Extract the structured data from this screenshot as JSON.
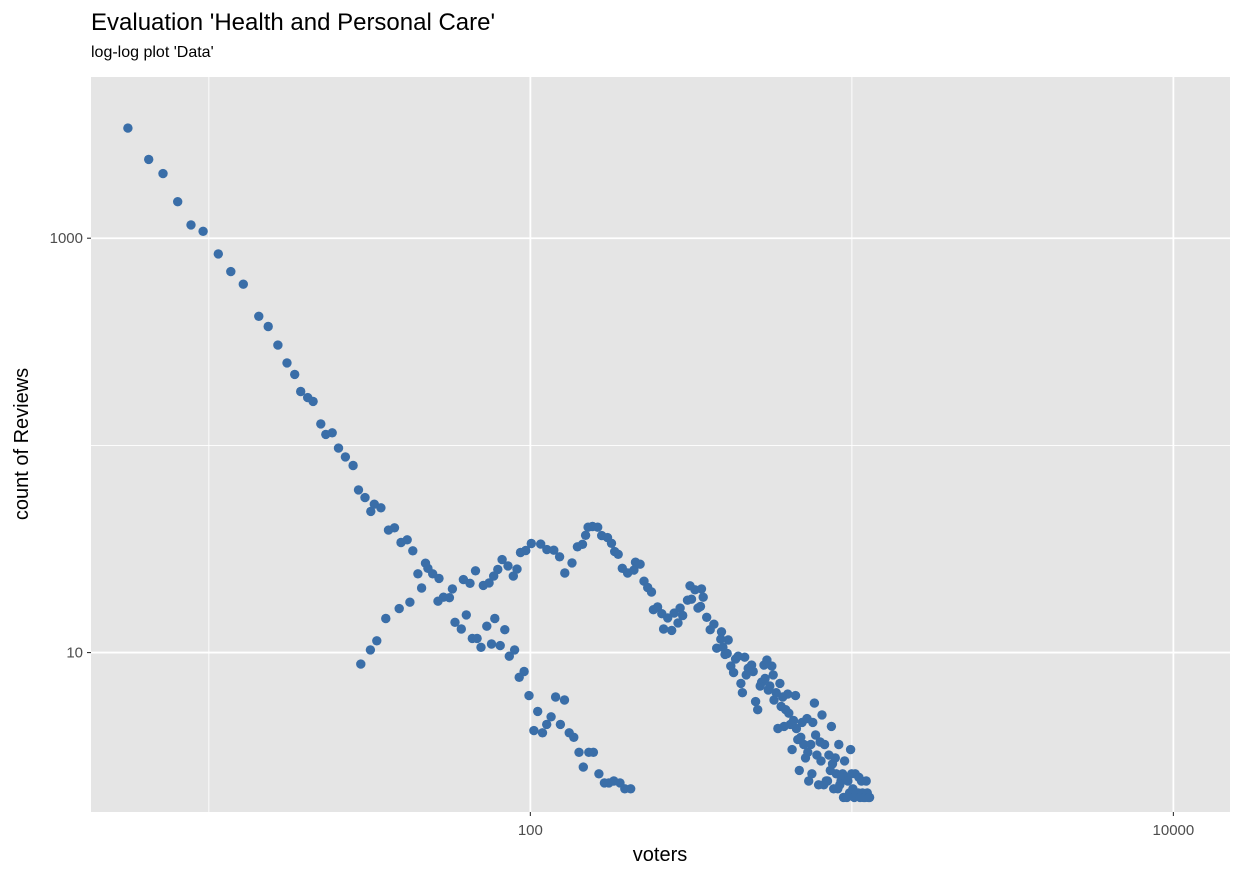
{
  "chart_data": {
    "type": "scatter",
    "title": "Evaluation 'Health and Personal Care'",
    "subtitle": "log-log plot 'Data'",
    "xlabel": "voters",
    "ylabel": "count of Reviews",
    "x_scale": "log10",
    "y_scale": "log10",
    "xlim": [
      4.3,
      15000
    ],
    "ylim": [
      1.7,
      6000
    ],
    "x_ticks": [
      {
        "value": 100,
        "label": "100"
      },
      {
        "value": 10000,
        "label": "10000"
      }
    ],
    "y_ticks": [
      {
        "value": 10,
        "label": "10"
      },
      {
        "value": 1000,
        "label": "1000"
      }
    ],
    "x_minor_gridlines": [
      10,
      1000
    ],
    "y_minor_gridlines": [
      1,
      100
    ],
    "grid": true,
    "point_color": "#3a6ea8",
    "panel_background": "#e5e5e5",
    "gridline_color": "#ffffff",
    "points": [
      [
        5.6,
        3400
      ],
      [
        6.5,
        2400
      ],
      [
        7.2,
        2050
      ],
      [
        8,
        1500
      ],
      [
        8.8,
        1160
      ],
      [
        9.6,
        1080
      ],
      [
        10.7,
        840
      ],
      [
        11.7,
        690
      ],
      [
        12.8,
        600
      ],
      [
        14.3,
        420
      ],
      [
        15.3,
        375
      ],
      [
        16.4,
        305
      ],
      [
        17.5,
        250
      ],
      [
        18.5,
        220
      ],
      [
        19.3,
        182
      ],
      [
        20.3,
        170
      ],
      [
        21.1,
        163
      ],
      [
        22.3,
        127
      ],
      [
        23.1,
        113
      ],
      [
        24.2,
        115
      ],
      [
        25.3,
        97
      ],
      [
        26.6,
        88
      ],
      [
        28.1,
        80
      ],
      [
        29.2,
        61
      ],
      [
        30.6,
        56
      ],
      [
        31.9,
        48
      ],
      [
        32.7,
        52
      ],
      [
        34.3,
        50
      ],
      [
        36.2,
        39
      ],
      [
        37.8,
        40
      ],
      [
        39.6,
        34
      ],
      [
        41.4,
        35
      ],
      [
        43.1,
        31
      ],
      [
        44.7,
        24
      ],
      [
        47.2,
        27
      ],
      [
        49.7,
        24
      ],
      [
        51.6,
        17.7
      ],
      [
        53.7,
        18.5
      ],
      [
        56,
        18.4
      ],
      [
        58.3,
        14
      ],
      [
        61,
        13
      ],
      [
        63.2,
        15.2
      ],
      [
        66,
        11.7
      ],
      [
        68.3,
        11.7
      ],
      [
        70.2,
        10.6
      ],
      [
        73.2,
        13.4
      ],
      [
        75.7,
        11
      ],
      [
        77.5,
        14.6
      ],
      [
        80.6,
        10.8
      ],
      [
        83.3,
        12.9
      ],
      [
        86,
        9.6
      ],
      [
        89.3,
        10.3
      ],
      [
        92.3,
        7.6
      ],
      [
        95.6,
        8.1
      ],
      [
        99,
        6.2
      ],
      [
        102.6,
        4.2
      ],
      [
        105.4,
        5.2
      ],
      [
        109.1,
        4.1
      ],
      [
        112.4,
        4.5
      ],
      [
        116,
        4.9
      ],
      [
        119.8,
        6.1
      ],
      [
        124,
        4.5
      ],
      [
        127.7,
        5.9
      ],
      [
        132.1,
        4.1
      ],
      [
        136.5,
        3.9
      ],
      [
        141.7,
        3.3
      ],
      [
        146.1,
        2.8
      ],
      [
        152,
        3.3
      ],
      [
        157.1,
        3.3
      ],
      [
        163.4,
        2.6
      ],
      [
        169.9,
        2.35
      ],
      [
        175.5,
        2.35
      ],
      [
        181.8,
        2.4
      ],
      [
        190,
        2.35
      ],
      [
        196.7,
        2.2
      ],
      [
        205.2,
        2.2
      ],
      [
        29.7,
        8.8
      ],
      [
        31.8,
        10.3
      ],
      [
        33.3,
        11.4
      ],
      [
        35.5,
        14.6
      ],
      [
        39.1,
        16.3
      ],
      [
        42.2,
        17.5
      ],
      [
        45.9,
        20.5
      ],
      [
        48,
        25.5
      ],
      [
        52,
        22.8
      ],
      [
        57.2,
        20.3
      ],
      [
        61.9,
        22.5
      ],
      [
        64.9,
        21.6
      ],
      [
        67.5,
        24.8
      ],
      [
        71.4,
        21.1
      ],
      [
        74.4,
        21.7
      ],
      [
        76.9,
        23.4
      ],
      [
        79.2,
        25.2
      ],
      [
        81.7,
        28.1
      ],
      [
        85.2,
        26.2
      ],
      [
        88.5,
        23.4
      ],
      [
        90.9,
        25.3
      ],
      [
        93.2,
        30.4
      ],
      [
        96.8,
        31.1
      ],
      [
        100.7,
        33.6
      ],
      [
        107.7,
        33.4
      ],
      [
        112.6,
        31.4
      ],
      [
        118.3,
        31.2
      ],
      [
        123.3,
        29
      ],
      [
        128,
        24.2
      ],
      [
        134.7,
        27.1
      ],
      [
        140.1,
        32.4
      ],
      [
        145.3,
        33.3
      ],
      [
        148.5,
        36.8
      ],
      [
        151.2,
        40.3
      ],
      [
        156,
        40.6
      ],
      [
        162,
        40.3
      ],
      [
        166.7,
        36.7
      ],
      [
        173.8,
        35.9
      ],
      [
        178.8,
        33.7
      ],
      [
        183,
        30.7
      ],
      [
        187.6,
        29.8
      ],
      [
        193.2,
        25.5
      ],
      [
        200.7,
        24.2
      ],
      [
        209.9,
        25
      ],
      [
        212.4,
        27.3
      ],
      [
        219.5,
        26.7
      ],
      [
        225.6,
        22.1
      ],
      [
        231.8,
        20.6
      ],
      [
        238.1,
        19.6
      ],
      [
        241.4,
        16.1
      ],
      [
        248.7,
        16.6
      ],
      [
        256.3,
        15.4
      ],
      [
        259.7,
        13
      ],
      [
        267.4,
        14.7
      ],
      [
        275.2,
        12.8
      ],
      [
        280.1,
        15.5
      ],
      [
        287.9,
        13.9
      ],
      [
        292.3,
        16.4
      ],
      [
        297.8,
        15.1
      ],
      [
        308.2,
        17.9
      ],
      [
        313.8,
        21
      ],
      [
        317.2,
        18.1
      ],
      [
        325.1,
        20.1
      ],
      [
        332.1,
        16.4
      ],
      [
        338.3,
        16.7
      ],
      [
        340.7,
        20.3
      ],
      [
        344.7,
        18.5
      ],
      [
        353.6,
        14.8
      ],
      [
        362.6,
        12.9
      ],
      [
        372.2,
        13.7
      ],
      [
        379.7,
        10.5
      ],
      [
        391.2,
        11.6
      ],
      [
        393.2,
        12.6
      ],
      [
        397.1,
        10.6
      ],
      [
        403,
        9.8
      ],
      [
        409.4,
        9.9
      ],
      [
        412.4,
        11.5
      ],
      [
        420.1,
        8.6
      ],
      [
        428.7,
        8
      ],
      [
        435,
        9.3
      ],
      [
        443,
        9.6
      ],
      [
        451.6,
        7.1
      ],
      [
        456.6,
        6.4
      ],
      [
        464,
        9.5
      ],
      [
        469.3,
        7.8
      ],
      [
        476,
        8.4
      ],
      [
        487.5,
        8.7
      ],
      [
        493.2,
        8.1
      ],
      [
        501.9,
        5.8
      ],
      [
        509.5,
        5.3
      ],
      [
        518.8,
        6.9
      ],
      [
        524.1,
        7.2
      ],
      [
        533,
        8.7
      ],
      [
        537.2,
        7.5
      ],
      [
        544.3,
        9.2
      ],
      [
        549.8,
        6.6
      ],
      [
        555.6,
        6.9
      ],
      [
        563.5,
        8.6
      ],
      [
        569.4,
        7.8
      ],
      [
        572.7,
        5.9
      ],
      [
        581.5,
        6.4
      ],
      [
        588.9,
        4.3
      ],
      [
        597.1,
        7.1
      ],
      [
        602.2,
        5.5
      ],
      [
        609.3,
        6.1
      ],
      [
        615.6,
        4.4
      ],
      [
        622.7,
        5.3
      ],
      [
        631.7,
        6.3
      ],
      [
        636.5,
        5.1
      ],
      [
        643.2,
        4.5
      ],
      [
        651.9,
        3.4
      ],
      [
        658.5,
        4.7
      ],
      [
        667.8,
        6.2
      ],
      [
        672.3,
        4.3
      ],
      [
        679,
        3.8
      ],
      [
        686.3,
        2.7
      ],
      [
        693.8,
        3.9
      ],
      [
        700.1,
        4.6
      ],
      [
        708.7,
        3.6
      ],
      [
        717.5,
        3.1
      ],
      [
        725.4,
        4.8
      ],
      [
        729.2,
        3.3
      ],
      [
        734.1,
        2.4
      ],
      [
        745.3,
        3.6
      ],
      [
        751.2,
        2.6
      ],
      [
        756,
        4.6
      ],
      [
        764.6,
        5.7
      ],
      [
        771.2,
        4
      ],
      [
        778.7,
        3.2
      ],
      [
        788.1,
        2.3
      ],
      [
        796.5,
        3.7
      ],
      [
        801.9,
        3
      ],
      [
        807.3,
        5
      ],
      [
        817.7,
        2.3
      ],
      [
        822.6,
        3.6
      ],
      [
        831.8,
        2.4
      ],
      [
        840.1,
        2.4
      ],
      [
        848.2,
        3.2
      ],
      [
        856.9,
        2.7
      ],
      [
        863.4,
        4.4
      ],
      [
        870.7,
        2.9
      ],
      [
        878.1,
        2.2
      ],
      [
        888.2,
        3.1
      ],
      [
        894.5,
        2.6
      ],
      [
        903.9,
        2.2
      ],
      [
        910.9,
        3.6
      ],
      [
        917.5,
        2.3
      ],
      [
        924.8,
        2.4
      ],
      [
        935.7,
        2.6
      ],
      [
        941.8,
        2
      ],
      [
        949.5,
        3
      ],
      [
        956.7,
        2.5
      ],
      [
        964.9,
        2
      ],
      [
        972,
        2.4
      ],
      [
        983.1,
        2.1
      ],
      [
        991,
        3.4
      ],
      [
        999,
        2.6
      ],
      [
        1007.1,
        2.2
      ],
      [
        1017.6,
        2
      ],
      [
        1024.3,
        2.6
      ],
      [
        1033.5,
        2.1
      ],
      [
        1046.9,
        2.1
      ],
      [
        1051.4,
        2.5
      ],
      [
        1060.5,
        2
      ],
      [
        1071.2,
        2.4
      ],
      [
        1079.4,
        2.1
      ],
      [
        1088.5,
        2
      ],
      [
        1098.4,
        2
      ],
      [
        1108.2,
        2.4
      ],
      [
        1116.8,
        2.1
      ],
      [
        1126.1,
        2
      ],
      [
        1135.6,
        2
      ]
    ]
  }
}
